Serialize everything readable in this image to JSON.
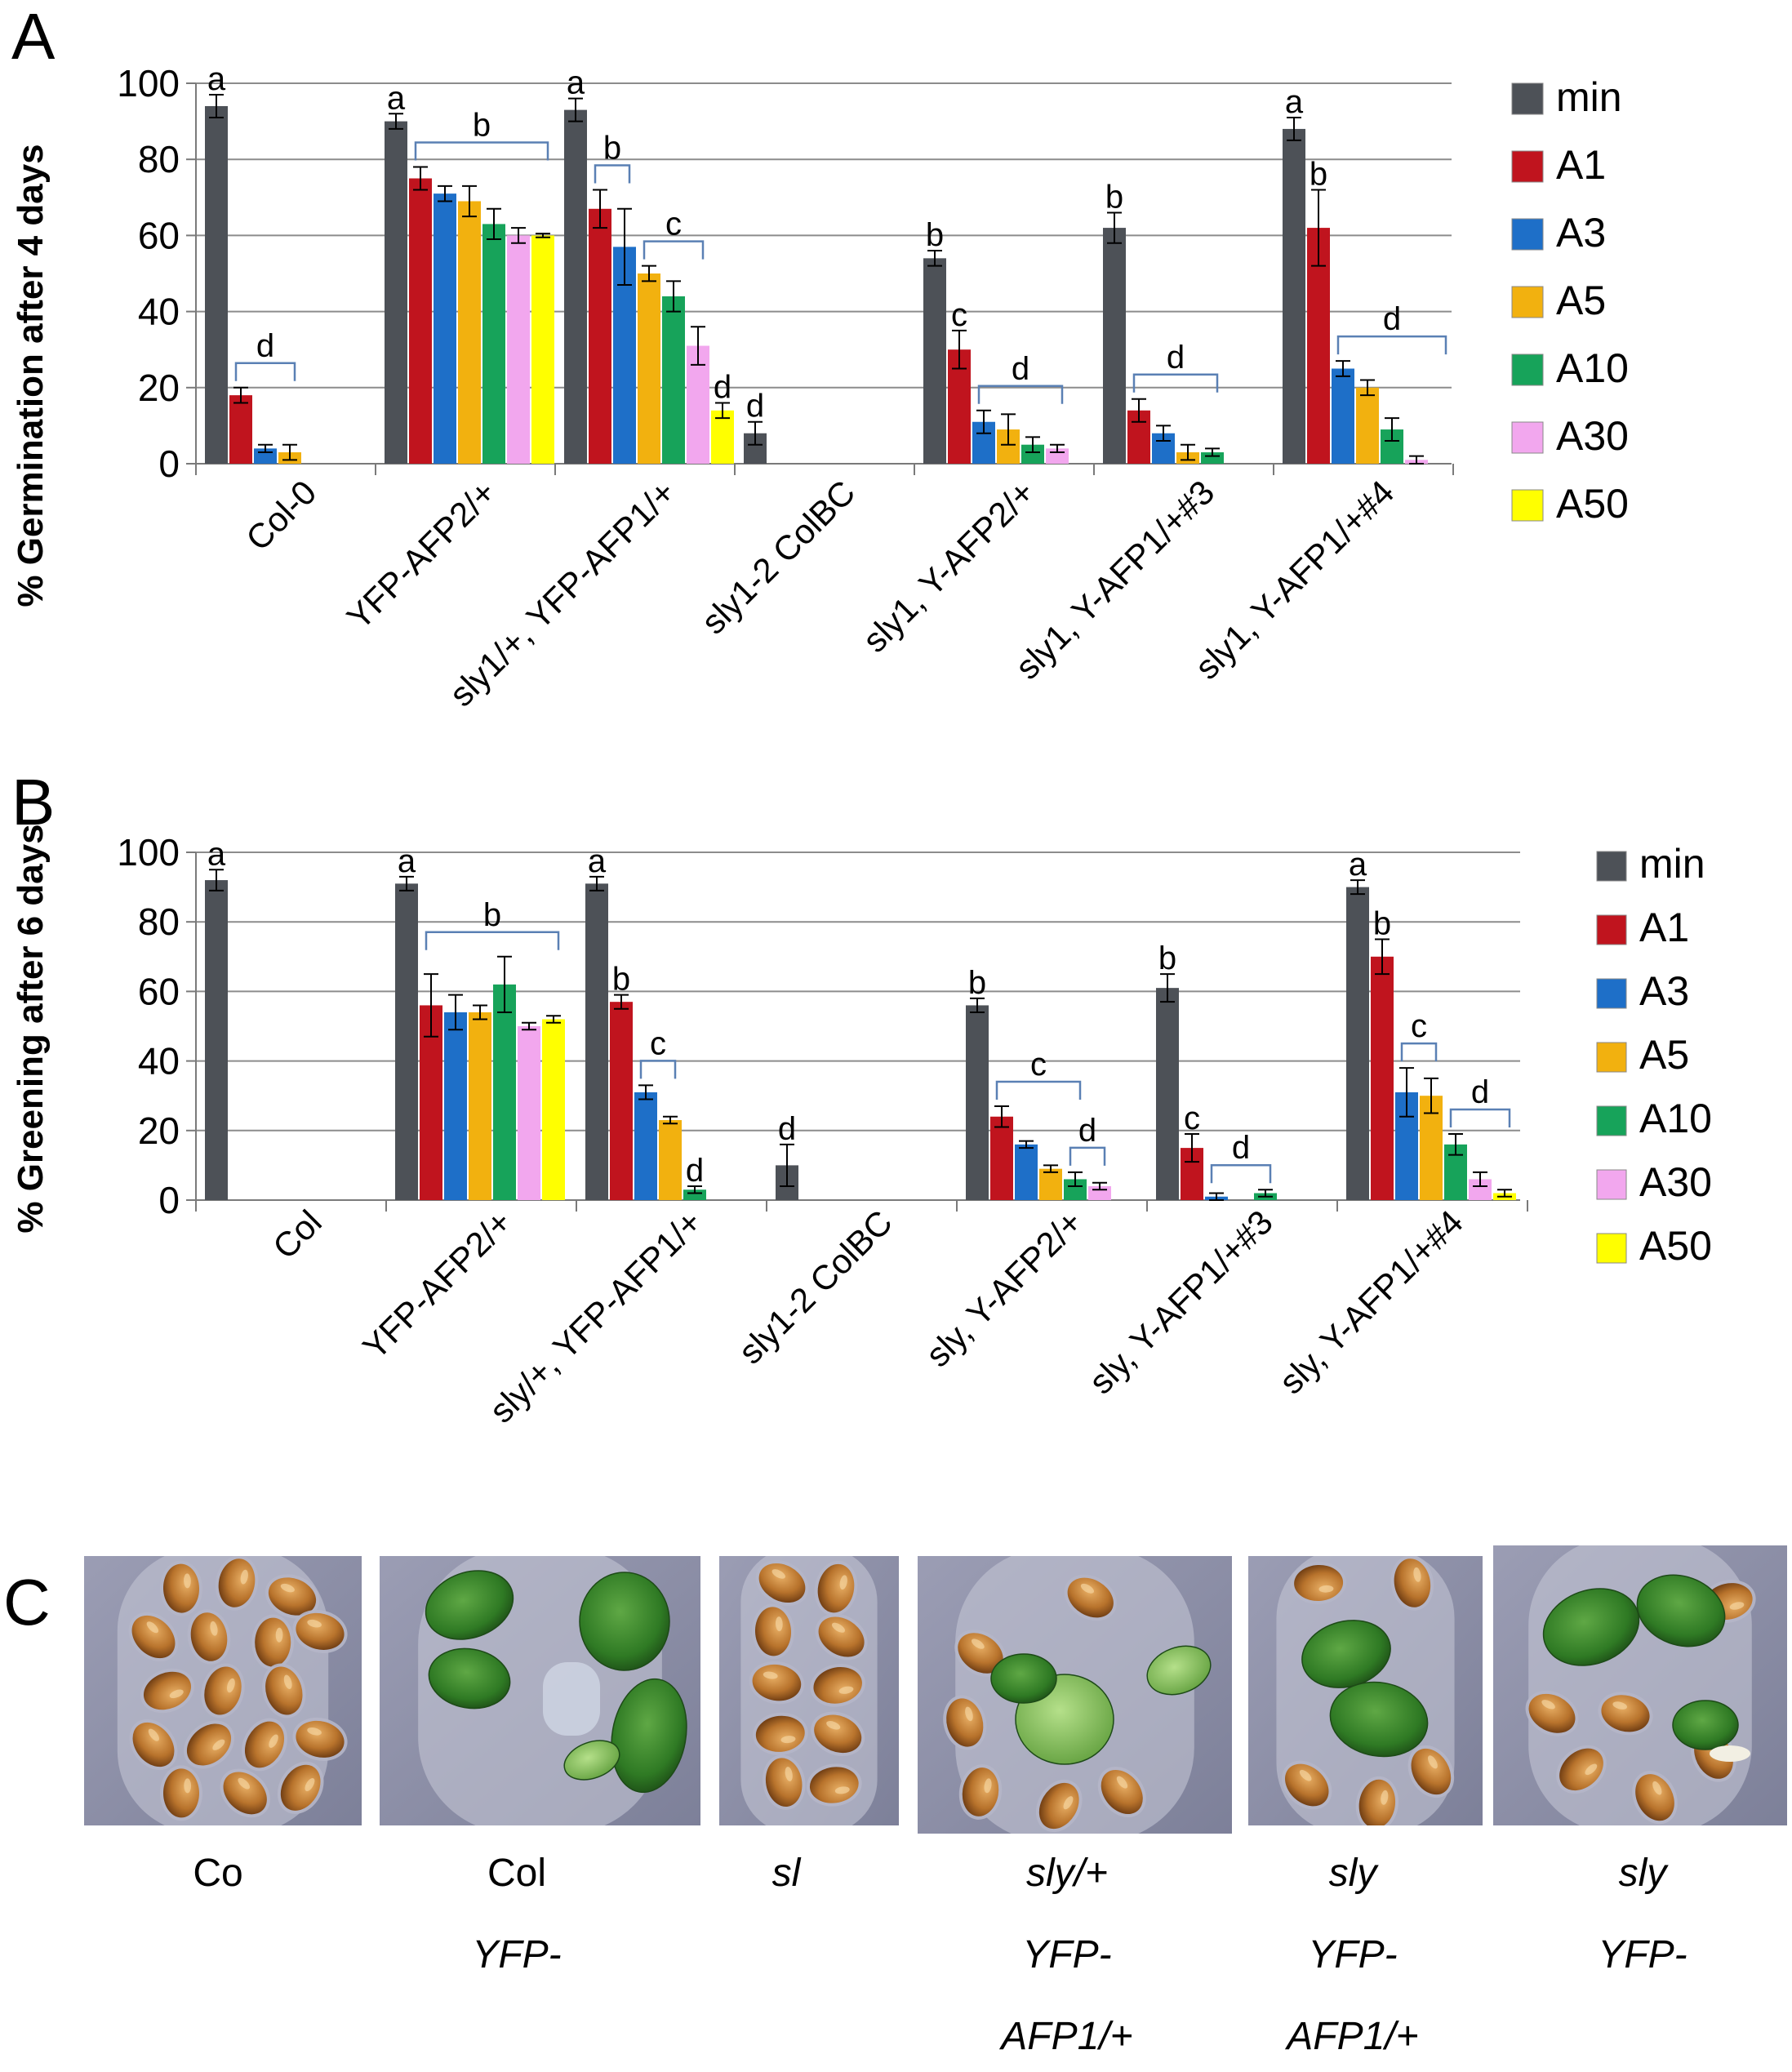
{
  "chart_data": [
    {
      "panel": "A",
      "type": "bar",
      "ylabel": "% Germination after 4 days",
      "ylim": [
        0,
        100
      ],
      "yticks": [
        0,
        20,
        40,
        60,
        80,
        100
      ],
      "grid": true,
      "legend_position": "right",
      "categories": [
        "Col-0",
        "YFP-AFP2/+",
        "sly1/+, YFP-AFP1/+",
        "sly1-2 ColBC",
        "sly1, Y-AFP2/+",
        "sly1, Y-AFP1/+#3",
        "sly1, Y-AFP1/+#4"
      ],
      "series": [
        {
          "name": "min",
          "color": "#4d5157",
          "values": [
            94,
            90,
            93,
            8,
            54,
            62,
            88
          ],
          "errors": [
            3,
            2,
            3,
            3,
            2,
            4,
            3
          ]
        },
        {
          "name": "A1",
          "color": "#c0141e",
          "values": [
            18,
            75,
            67,
            null,
            30,
            14,
            62
          ],
          "errors": [
            2,
            3,
            5,
            null,
            5,
            3,
            10
          ]
        },
        {
          "name": "A3",
          "color": "#1e6fc8",
          "values": [
            4,
            71,
            57,
            null,
            11,
            8,
            25
          ],
          "errors": [
            1,
            2,
            10,
            null,
            3,
            2,
            2
          ]
        },
        {
          "name": "A5",
          "color": "#f2b10f",
          "values": [
            3,
            69,
            50,
            null,
            9,
            3,
            20
          ],
          "errors": [
            2,
            4,
            2,
            null,
            4,
            2,
            2
          ]
        },
        {
          "name": "A10",
          "color": "#17a35a",
          "values": [
            null,
            63,
            44,
            null,
            5,
            3,
            9
          ],
          "errors": [
            null,
            4,
            4,
            null,
            2,
            1,
            3
          ]
        },
        {
          "name": "A30",
          "color": "#f2a7ee",
          "values": [
            null,
            60,
            31,
            null,
            4,
            null,
            1
          ],
          "errors": [
            null,
            2,
            5,
            null,
            1,
            null,
            1
          ]
        },
        {
          "name": "A50",
          "color": "#ffff00",
          "values": [
            null,
            60,
            14,
            null,
            null,
            null,
            null
          ],
          "errors": [
            null,
            0.5,
            2,
            null,
            null,
            null,
            null
          ]
        }
      ],
      "annotations": [
        {
          "group": 0,
          "bar": 0,
          "text": "a"
        },
        {
          "group": 0,
          "from": 1,
          "to": 3,
          "text": "d"
        },
        {
          "group": 1,
          "bar": 0,
          "text": "a"
        },
        {
          "group": 1,
          "from": 1,
          "to": 6,
          "text": "b"
        },
        {
          "group": 2,
          "bar": 0,
          "text": "a"
        },
        {
          "group": 2,
          "from": 1,
          "to": 2,
          "text": "b"
        },
        {
          "group": 2,
          "from": 3,
          "to": 5,
          "text": "c"
        },
        {
          "group": 2,
          "bar": 6,
          "text": "d"
        },
        {
          "group": 3,
          "bar": 0,
          "text": "d"
        },
        {
          "group": 4,
          "bar": 0,
          "text": "b"
        },
        {
          "group": 4,
          "bar": 1,
          "text": "c"
        },
        {
          "group": 4,
          "from": 2,
          "to": 5,
          "text": "d"
        },
        {
          "group": 5,
          "bar": 0,
          "text": "b"
        },
        {
          "group": 5,
          "from": 1,
          "to": 4,
          "text": "d"
        },
        {
          "group": 6,
          "bar": 0,
          "text": "a"
        },
        {
          "group": 6,
          "bar": 1,
          "text": "b"
        },
        {
          "group": 6,
          "from": 2,
          "to": 6,
          "text": "d"
        }
      ]
    },
    {
      "panel": "B",
      "type": "bar",
      "ylabel": "% Greening after 6 days",
      "ylim": [
        0,
        100
      ],
      "yticks": [
        0,
        20,
        40,
        60,
        80,
        100
      ],
      "grid": true,
      "legend_position": "right",
      "categories": [
        "Col",
        "YFP-AFP2/+",
        "sly/+, YFP-AFP1/+",
        "sly1-2 ColBC",
        "sly, Y-AFP2/+",
        "sly, Y-AFP1/+#3",
        "sly, Y-AFP1/+#4"
      ],
      "series": [
        {
          "name": "min",
          "color": "#4d5157",
          "values": [
            92,
            91,
            91,
            10,
            56,
            61,
            90
          ],
          "errors": [
            3,
            2,
            2,
            6,
            2,
            4,
            2
          ]
        },
        {
          "name": "A1",
          "color": "#c0141e",
          "values": [
            null,
            56,
            57,
            null,
            24,
            15,
            70
          ],
          "errors": [
            null,
            9,
            2,
            null,
            3,
            4,
            5
          ]
        },
        {
          "name": "A3",
          "color": "#1e6fc8",
          "values": [
            null,
            54,
            31,
            null,
            16,
            1,
            31
          ],
          "errors": [
            null,
            5,
            2,
            null,
            1,
            1,
            7
          ]
        },
        {
          "name": "A5",
          "color": "#f2b10f",
          "values": [
            null,
            54,
            23,
            null,
            9,
            null,
            30
          ],
          "errors": [
            null,
            2,
            1,
            null,
            1,
            null,
            5
          ]
        },
        {
          "name": "A10",
          "color": "#17a35a",
          "values": [
            null,
            62,
            3,
            null,
            6,
            2,
            16
          ],
          "errors": [
            null,
            8,
            1,
            null,
            2,
            1,
            3
          ]
        },
        {
          "name": "A30",
          "color": "#f2a7ee",
          "values": [
            null,
            50,
            null,
            null,
            4,
            null,
            6
          ],
          "errors": [
            null,
            1,
            null,
            null,
            1,
            null,
            2
          ]
        },
        {
          "name": "A50",
          "color": "#ffff00",
          "values": [
            null,
            52,
            null,
            null,
            null,
            null,
            2
          ],
          "errors": [
            null,
            1,
            null,
            null,
            null,
            null,
            1
          ]
        }
      ],
      "annotations": [
        {
          "group": 0,
          "bar": 0,
          "text": "a"
        },
        {
          "group": 1,
          "bar": 0,
          "text": "a"
        },
        {
          "group": 1,
          "from": 1,
          "to": 6,
          "text": "b"
        },
        {
          "group": 2,
          "bar": 0,
          "text": "a"
        },
        {
          "group": 2,
          "bar": 1,
          "text": "b"
        },
        {
          "group": 2,
          "from": 2,
          "to": 3,
          "text": "c"
        },
        {
          "group": 2,
          "bar": 4,
          "text": "d"
        },
        {
          "group": 3,
          "bar": 0,
          "text": "d"
        },
        {
          "group": 4,
          "bar": 0,
          "text": "b"
        },
        {
          "group": 4,
          "from": 1,
          "to": 4,
          "text": "c"
        },
        {
          "group": 4,
          "from": 4,
          "to": 5,
          "text": "d"
        },
        {
          "group": 5,
          "bar": 0,
          "text": "b"
        },
        {
          "group": 5,
          "bar": 1,
          "text": "c"
        },
        {
          "group": 5,
          "from": 2,
          "to": 4,
          "text": "d"
        },
        {
          "group": 6,
          "bar": 0,
          "text": "a"
        },
        {
          "group": 6,
          "bar": 1,
          "text": "b"
        },
        {
          "group": 6,
          "from": 2,
          "to": 3,
          "text": "c"
        },
        {
          "group": 6,
          "from": 4,
          "to": 6,
          "text": "d"
        }
      ]
    }
  ],
  "panel_c": {
    "label": "C",
    "photos": [
      {
        "name": "col",
        "caption": [
          "Co"
        ],
        "italic": [
          false
        ]
      },
      {
        "name": "col-yfp",
        "caption": [
          "Col",
          "YFP-"
        ],
        "italic": [
          false,
          true
        ]
      },
      {
        "name": "sly",
        "caption": [
          "sl"
        ],
        "italic": [
          true
        ]
      },
      {
        "name": "sly-het-yfp-afp1",
        "caption": [
          "sly/+",
          "YFP-",
          "AFP1/+"
        ],
        "italic": [
          true,
          true,
          true
        ]
      },
      {
        "name": "sly-yfp-afp1",
        "caption": [
          "sly",
          "YFP-",
          "AFP1/+"
        ],
        "italic": [
          true,
          true,
          true
        ]
      },
      {
        "name": "sly-yfp",
        "caption": [
          "sly",
          "YFP-"
        ],
        "italic": [
          true,
          true
        ]
      }
    ]
  }
}
